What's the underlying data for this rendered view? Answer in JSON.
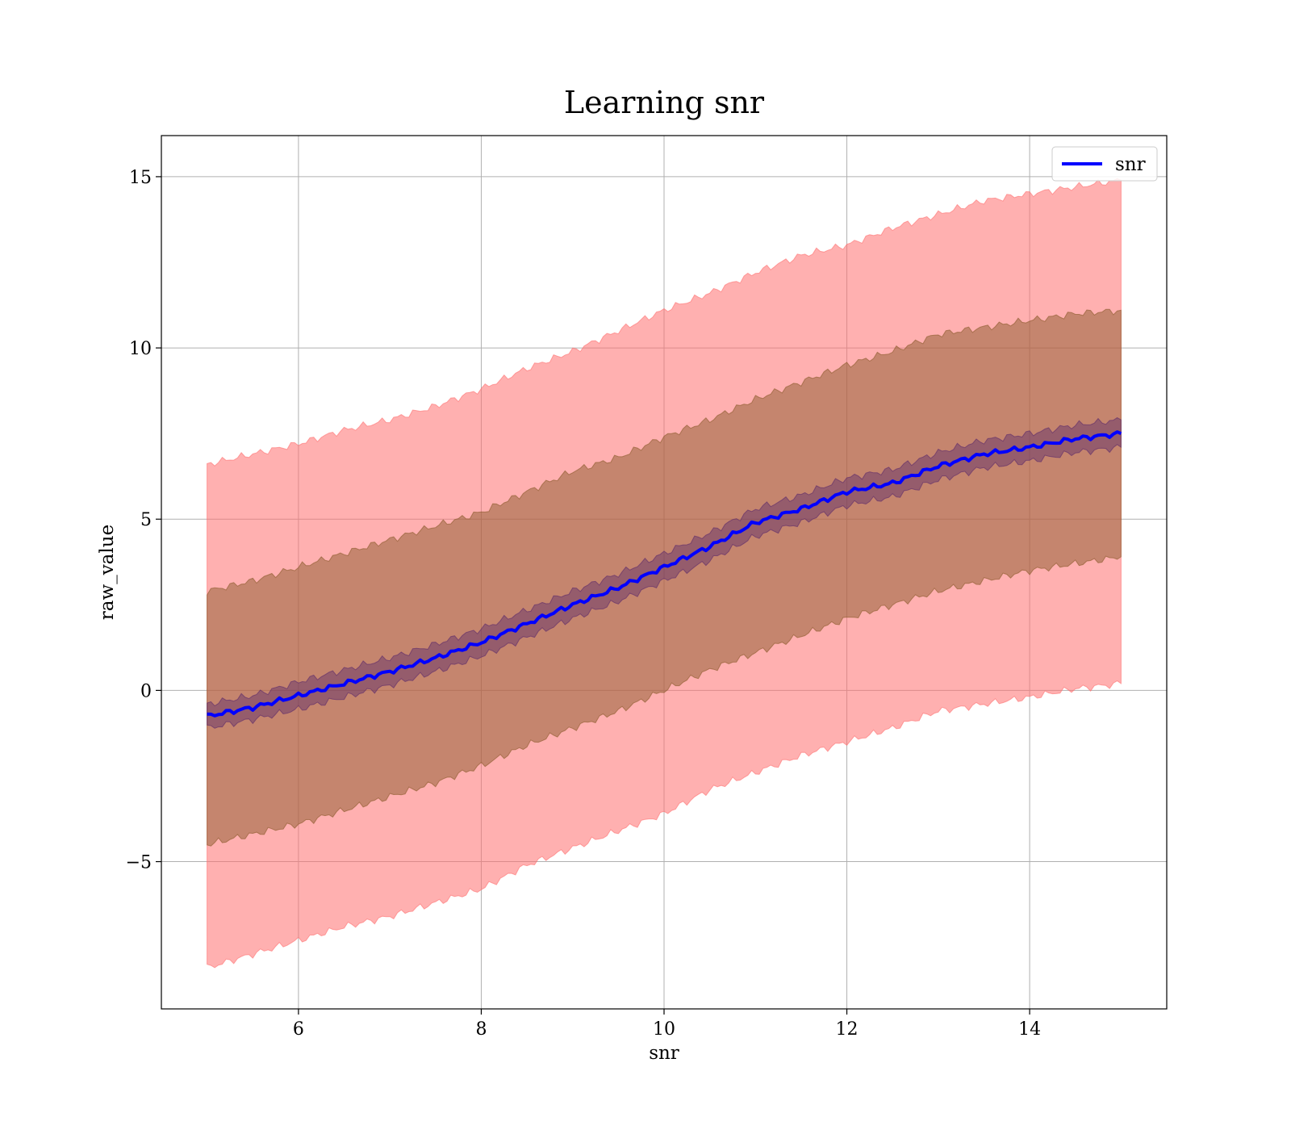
{
  "chart_data": {
    "type": "line",
    "title": "Learning snr",
    "xlabel": "snr",
    "ylabel": "raw_value",
    "xlim": [
      4.5,
      15.5
    ],
    "ylim": [
      -9.3,
      16.2
    ],
    "xticks": [
      6,
      8,
      10,
      12,
      14
    ],
    "xtick_labels": [
      "6",
      "8",
      "10",
      "12",
      "14"
    ],
    "yticks": [
      -5,
      0,
      5,
      10,
      15
    ],
    "ytick_labels": [
      "−5",
      "0",
      "5",
      "10",
      "15"
    ],
    "grid": true,
    "legend_position": "top-right",
    "colors": {
      "mean_line": "#0000ff",
      "band_outer": "#ff6f6f",
      "band_middle": "#8b5a2b",
      "band_inner": "#5b2a6b"
    },
    "x": [
      5.0,
      5.5,
      6.0,
      6.5,
      7.0,
      7.5,
      8.0,
      8.5,
      9.0,
      9.5,
      10.0,
      10.5,
      11.0,
      11.5,
      12.0,
      12.5,
      13.0,
      13.5,
      14.0,
      14.5,
      15.0
    ],
    "series": [
      {
        "name": "snr",
        "values": [
          -0.75,
          -0.5,
          -0.15,
          0.2,
          0.55,
          0.95,
          1.4,
          1.95,
          2.5,
          3.0,
          3.6,
          4.2,
          4.9,
          5.3,
          5.8,
          6.05,
          6.55,
          6.9,
          7.1,
          7.35,
          7.5
        ]
      }
    ],
    "bands": [
      {
        "lower": [
          -8.1,
          -7.7,
          -7.3,
          -6.9,
          -6.6,
          -6.2,
          -5.8,
          -5.1,
          -4.6,
          -4.1,
          -3.6,
          -2.9,
          -2.4,
          -1.9,
          -1.5,
          -1.1,
          -0.6,
          -0.4,
          -0.2,
          0.05,
          0.2
        ],
        "upper": [
          6.6,
          6.9,
          7.2,
          7.6,
          7.9,
          8.3,
          8.8,
          9.4,
          9.9,
          10.5,
          11.1,
          11.6,
          12.2,
          12.7,
          13.0,
          13.5,
          13.9,
          14.3,
          14.5,
          14.7,
          14.9
        ]
      },
      {
        "lower": [
          -4.5,
          -4.2,
          -3.9,
          -3.5,
          -3.1,
          -2.7,
          -2.2,
          -1.6,
          -1.1,
          -0.6,
          0.0,
          0.6,
          1.1,
          1.6,
          2.1,
          2.5,
          2.9,
          3.2,
          3.5,
          3.7,
          3.9
        ],
        "upper": [
          2.9,
          3.2,
          3.6,
          4.0,
          4.4,
          4.8,
          5.2,
          5.8,
          6.4,
          6.8,
          7.4,
          7.9,
          8.5,
          9.0,
          9.5,
          9.9,
          10.4,
          10.6,
          10.8,
          11.0,
          11.1
        ]
      },
      {
        "lower": [
          -1.1,
          -0.85,
          -0.55,
          -0.2,
          0.15,
          0.55,
          1.0,
          1.55,
          2.1,
          2.6,
          3.2,
          3.8,
          4.5,
          4.9,
          5.4,
          5.65,
          6.15,
          6.5,
          6.7,
          6.95,
          7.1
        ],
        "upper": [
          -0.4,
          -0.15,
          0.25,
          0.6,
          0.95,
          1.35,
          1.8,
          2.35,
          2.9,
          3.4,
          4.0,
          4.6,
          5.3,
          5.7,
          6.2,
          6.45,
          6.95,
          7.3,
          7.5,
          7.75,
          7.9
        ]
      }
    ]
  }
}
